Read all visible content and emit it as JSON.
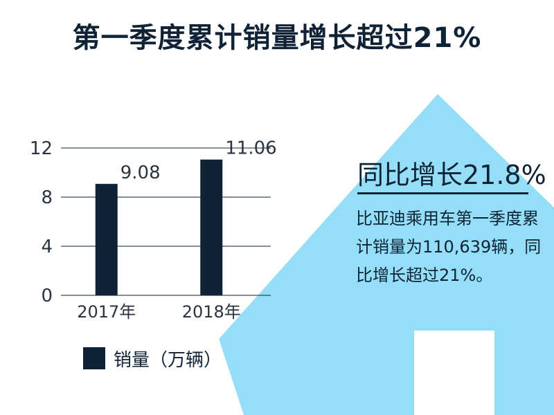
{
  "title": "第一季度累计销量增长超过21%",
  "highlight": "同比增长21.8%",
  "description": "比亚迪乘用车第一季度累计销量为110,639辆，同比增长超过21%。",
  "colors": {
    "bar": "#0f2236",
    "arrow": "#94dff7",
    "text": "#0f2236",
    "grid": "#0f2236"
  },
  "chart_data": {
    "type": "bar",
    "categories": [
      "2017年",
      "2018年"
    ],
    "series": [
      {
        "name": "销量（万辆）",
        "values": [
          9.08,
          11.06
        ]
      }
    ],
    "data_labels": [
      "9.08",
      "11.06"
    ],
    "yticks": [
      "0",
      "4",
      "8",
      "12"
    ],
    "ylim": [
      0,
      12
    ],
    "grid": true,
    "legend_position": "bottom-left"
  }
}
